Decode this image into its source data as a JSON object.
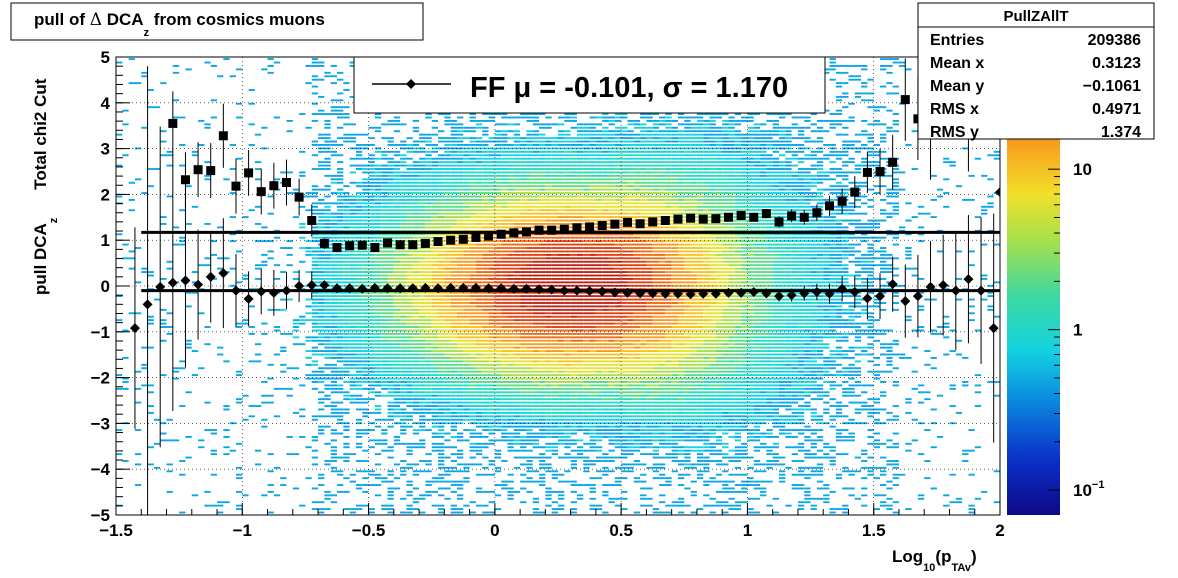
{
  "title_box": {
    "pre": "pull of ",
    "delta": "Δ",
    "mid": " DCA",
    "sub": "z",
    "post": " from cosmics muons"
  },
  "stats": {
    "name": "PullZAllT",
    "rows": [
      {
        "label": "Entries",
        "value": "209386"
      },
      {
        "label": "Mean x",
        "value": "0.3123"
      },
      {
        "label": "Mean y",
        "value": "−0.1061"
      },
      {
        "label": "RMS x",
        "value": "0.4971"
      },
      {
        "label": "RMS y",
        "value": "1.374"
      }
    ]
  },
  "legend": {
    "entry": "FF μ = -0.101, σ =   1.170"
  },
  "axes": {
    "ylabel_main": "pull DCA",
    "ylabel_sub": "z",
    "ylabel_extra": "Total chi2 Cut",
    "xlabel_main": "Log",
    "xlabel_sub1": "10",
    "xlabel_mid": "(p",
    "xlabel_sub2": "TAv",
    "xlabel_end": ")"
  },
  "colorbar": {
    "labels": [
      {
        "text": "10",
        "exp": "",
        "value": 10
      },
      {
        "text": "1",
        "exp": "",
        "value": 1
      },
      {
        "text": "10",
        "exp": "−1",
        "value": 0.1
      }
    ]
  },
  "chart_data": {
    "type": "heatmap",
    "xlim": [
      -1.5,
      2
    ],
    "ylim": [
      -5,
      5
    ],
    "xticks": [
      {
        "v": -1.5,
        "label": "−1.5"
      },
      {
        "v": -1,
        "label": "−1"
      },
      {
        "v": -0.5,
        "label": "−0.5"
      },
      {
        "v": 0,
        "label": "0"
      },
      {
        "v": 0.5,
        "label": "0.5"
      },
      {
        "v": 1,
        "label": "1"
      },
      {
        "v": 1.5,
        "label": "1.5"
      },
      {
        "v": 2,
        "label": "2"
      }
    ],
    "yticks": [
      {
        "v": -5,
        "label": "−5"
      },
      {
        "v": -4,
        "label": "−4"
      },
      {
        "v": -3,
        "label": "−3"
      },
      {
        "v": -2,
        "label": "−2"
      },
      {
        "v": -1,
        "label": "−1"
      },
      {
        "v": 0,
        "label": "0"
      },
      {
        "v": 1,
        "label": "1"
      },
      {
        "v": 2,
        "label": "2"
      },
      {
        "v": 3,
        "label": "3"
      },
      {
        "v": 4,
        "label": "4"
      },
      {
        "v": 5,
        "label": "5"
      }
    ],
    "grid": true,
    "z_scale": "log",
    "z_range": [
      0.07,
      50
    ],
    "lines": [
      {
        "y": 1.17,
        "color": "#000000"
      },
      {
        "y": -0.101,
        "color": "#000000"
      }
    ],
    "series": [
      {
        "marker": "square",
        "points": [
          {
            "x": -1.275,
            "y": 3.55,
            "err": 0.7
          },
          {
            "x": -1.225,
            "y": 2.32,
            "err": 0.6
          },
          {
            "x": -1.175,
            "y": 2.54,
            "err": 0.6
          },
          {
            "x": -1.125,
            "y": 2.52,
            "err": 0.6
          },
          {
            "x": -1.075,
            "y": 3.28,
            "err": 0.7
          },
          {
            "x": -1.025,
            "y": 2.18,
            "err": 0.6
          },
          {
            "x": -0.975,
            "y": 2.47,
            "err": 0.5
          },
          {
            "x": -0.925,
            "y": 2.06,
            "err": 0.5
          },
          {
            "x": -0.875,
            "y": 2.19,
            "err": 0.5
          },
          {
            "x": -0.825,
            "y": 2.26,
            "err": 0.5
          },
          {
            "x": -0.775,
            "y": 1.94,
            "err": 0.4
          },
          {
            "x": -0.725,
            "y": 1.43,
            "err": 0.35
          },
          {
            "x": -0.675,
            "y": 0.93,
            "err": 0.12
          },
          {
            "x": -0.625,
            "y": 0.84,
            "err": 0.1
          },
          {
            "x": -0.575,
            "y": 0.88,
            "err": 0.08
          },
          {
            "x": -0.525,
            "y": 0.89,
            "err": 0.08
          },
          {
            "x": -0.475,
            "y": 0.84,
            "err": 0.06
          },
          {
            "x": -0.425,
            "y": 0.94,
            "err": 0.05
          },
          {
            "x": -0.375,
            "y": 0.9,
            "err": 0.05
          },
          {
            "x": -0.325,
            "y": 0.9,
            "err": 0.05
          },
          {
            "x": -0.275,
            "y": 0.93,
            "err": 0.04
          },
          {
            "x": -0.225,
            "y": 0.97,
            "err": 0.04
          },
          {
            "x": -0.175,
            "y": 1.0,
            "err": 0.04
          },
          {
            "x": -0.125,
            "y": 1.02,
            "err": 0.04
          },
          {
            "x": -0.075,
            "y": 1.06,
            "err": 0.04
          },
          {
            "x": -0.025,
            "y": 1.09,
            "err": 0.04
          },
          {
            "x": 0.025,
            "y": 1.13,
            "err": 0.04
          },
          {
            "x": 0.075,
            "y": 1.16,
            "err": 0.04
          },
          {
            "x": 0.125,
            "y": 1.18,
            "err": 0.04
          },
          {
            "x": 0.175,
            "y": 1.22,
            "err": 0.04
          },
          {
            "x": 0.225,
            "y": 1.22,
            "err": 0.04
          },
          {
            "x": 0.275,
            "y": 1.24,
            "err": 0.04
          },
          {
            "x": 0.325,
            "y": 1.27,
            "err": 0.04
          },
          {
            "x": 0.375,
            "y": 1.29,
            "err": 0.04
          },
          {
            "x": 0.425,
            "y": 1.32,
            "err": 0.04
          },
          {
            "x": 0.475,
            "y": 1.35,
            "err": 0.04
          },
          {
            "x": 0.525,
            "y": 1.39,
            "err": 0.04
          },
          {
            "x": 0.575,
            "y": 1.36,
            "err": 0.05
          },
          {
            "x": 0.625,
            "y": 1.4,
            "err": 0.05
          },
          {
            "x": 0.675,
            "y": 1.43,
            "err": 0.05
          },
          {
            "x": 0.725,
            "y": 1.46,
            "err": 0.05
          },
          {
            "x": 0.775,
            "y": 1.48,
            "err": 0.06
          },
          {
            "x": 0.825,
            "y": 1.46,
            "err": 0.06
          },
          {
            "x": 0.875,
            "y": 1.47,
            "err": 0.07
          },
          {
            "x": 0.925,
            "y": 1.5,
            "err": 0.07
          },
          {
            "x": 0.975,
            "y": 1.54,
            "err": 0.08
          },
          {
            "x": 1.025,
            "y": 1.5,
            "err": 0.09
          },
          {
            "x": 1.075,
            "y": 1.58,
            "err": 0.1
          },
          {
            "x": 1.125,
            "y": 1.4,
            "err": 0.12
          },
          {
            "x": 1.175,
            "y": 1.53,
            "err": 0.14
          },
          {
            "x": 1.225,
            "y": 1.5,
            "err": 0.16
          },
          {
            "x": 1.275,
            "y": 1.6,
            "err": 0.18
          },
          {
            "x": 1.325,
            "y": 1.75,
            "err": 0.22
          },
          {
            "x": 1.375,
            "y": 1.85,
            "err": 0.28
          },
          {
            "x": 1.425,
            "y": 2.05,
            "err": 0.35
          },
          {
            "x": 1.475,
            "y": 2.48,
            "err": 0.45
          },
          {
            "x": 1.525,
            "y": 2.5,
            "err": 0.5
          },
          {
            "x": 1.575,
            "y": 2.7,
            "err": 0.6
          },
          {
            "x": 1.625,
            "y": 4.07,
            "err": 0.9
          },
          {
            "x": 1.675,
            "y": 3.65,
            "err": 0.9
          },
          {
            "x": 1.725,
            "y": 3.32,
            "err": 1.0
          },
          {
            "x": 1.875,
            "y": 3.9,
            "err": 1.4
          }
        ]
      },
      {
        "marker": "diamond",
        "points": [
          {
            "x": -1.425,
            "y": -0.92,
            "err": 2.2
          },
          {
            "x": -1.375,
            "y": -0.4,
            "err": 5.2
          },
          {
            "x": -1.325,
            "y": -0.02,
            "err": 3.5
          },
          {
            "x": -1.275,
            "y": 0.07,
            "err": 2.8
          },
          {
            "x": -1.225,
            "y": 0.12,
            "err": 1.9
          },
          {
            "x": -1.175,
            "y": 0.03,
            "err": 1.2
          },
          {
            "x": -1.125,
            "y": 0.2,
            "err": 1.0
          },
          {
            "x": -1.075,
            "y": 0.28,
            "err": 1.2
          },
          {
            "x": -1.025,
            "y": -0.1,
            "err": 0.8
          },
          {
            "x": -0.975,
            "y": -0.28,
            "err": 0.6
          },
          {
            "x": -0.925,
            "y": -0.12,
            "err": 0.5
          },
          {
            "x": -0.875,
            "y": -0.15,
            "err": 0.5
          },
          {
            "x": -0.825,
            "y": -0.1,
            "err": 0.4
          },
          {
            "x": -0.775,
            "y": 0.0,
            "err": 0.35
          },
          {
            "x": -0.725,
            "y": 0.02,
            "err": 0.3
          },
          {
            "x": -0.675,
            "y": 0.02,
            "err": 0.1
          },
          {
            "x": -0.625,
            "y": -0.05,
            "err": 0.08
          },
          {
            "x": -0.575,
            "y": -0.05,
            "err": 0.07
          },
          {
            "x": -0.525,
            "y": -0.06,
            "err": 0.07
          },
          {
            "x": -0.475,
            "y": -0.04,
            "err": 0.06
          },
          {
            "x": -0.425,
            "y": -0.05,
            "err": 0.05
          },
          {
            "x": -0.375,
            "y": -0.05,
            "err": 0.05
          },
          {
            "x": -0.325,
            "y": -0.05,
            "err": 0.05
          },
          {
            "x": -0.275,
            "y": -0.04,
            "err": 0.04
          },
          {
            "x": -0.225,
            "y": -0.05,
            "err": 0.04
          },
          {
            "x": -0.175,
            "y": -0.04,
            "err": 0.04
          },
          {
            "x": -0.125,
            "y": -0.04,
            "err": 0.04
          },
          {
            "x": -0.075,
            "y": -0.04,
            "err": 0.04
          },
          {
            "x": -0.025,
            "y": -0.05,
            "err": 0.04
          },
          {
            "x": 0.025,
            "y": -0.05,
            "err": 0.04
          },
          {
            "x": 0.075,
            "y": -0.06,
            "err": 0.04
          },
          {
            "x": 0.125,
            "y": -0.06,
            "err": 0.04
          },
          {
            "x": 0.175,
            "y": -0.07,
            "err": 0.04
          },
          {
            "x": 0.225,
            "y": -0.08,
            "err": 0.04
          },
          {
            "x": 0.275,
            "y": -0.1,
            "err": 0.04
          },
          {
            "x": 0.325,
            "y": -0.1,
            "err": 0.04
          },
          {
            "x": 0.375,
            "y": -0.11,
            "err": 0.04
          },
          {
            "x": 0.425,
            "y": -0.12,
            "err": 0.04
          },
          {
            "x": 0.475,
            "y": -0.14,
            "err": 0.04
          },
          {
            "x": 0.525,
            "y": -0.15,
            "err": 0.04
          },
          {
            "x": 0.575,
            "y": -0.16,
            "err": 0.05
          },
          {
            "x": 0.625,
            "y": -0.16,
            "err": 0.05
          },
          {
            "x": 0.675,
            "y": -0.17,
            "err": 0.05
          },
          {
            "x": 0.725,
            "y": -0.17,
            "err": 0.05
          },
          {
            "x": 0.775,
            "y": -0.18,
            "err": 0.06
          },
          {
            "x": 0.825,
            "y": -0.17,
            "err": 0.06
          },
          {
            "x": 0.875,
            "y": -0.17,
            "err": 0.07
          },
          {
            "x": 0.925,
            "y": -0.15,
            "err": 0.07
          },
          {
            "x": 0.975,
            "y": -0.15,
            "err": 0.08
          },
          {
            "x": 1.025,
            "y": -0.13,
            "err": 0.09
          },
          {
            "x": 1.075,
            "y": -0.16,
            "err": 0.1
          },
          {
            "x": 1.125,
            "y": -0.22,
            "err": 0.12
          },
          {
            "x": 1.175,
            "y": -0.2,
            "err": 0.14
          },
          {
            "x": 1.225,
            "y": -0.16,
            "err": 0.16
          },
          {
            "x": 1.275,
            "y": -0.13,
            "err": 0.18
          },
          {
            "x": 1.325,
            "y": -0.17,
            "err": 0.22
          },
          {
            "x": 1.375,
            "y": -0.06,
            "err": 0.28
          },
          {
            "x": 1.425,
            "y": -0.13,
            "err": 0.35
          },
          {
            "x": 1.475,
            "y": -0.27,
            "err": 0.45
          },
          {
            "x": 1.525,
            "y": -0.22,
            "err": 0.5
          },
          {
            "x": 1.575,
            "y": 0.04,
            "err": 0.6
          },
          {
            "x": 1.625,
            "y": -0.33,
            "err": 0.8
          },
          {
            "x": 1.675,
            "y": -0.22,
            "err": 0.9
          },
          {
            "x": 1.725,
            "y": -0.02,
            "err": 1.0
          },
          {
            "x": 1.775,
            "y": 0.02,
            "err": 1.1
          },
          {
            "x": 1.825,
            "y": -0.1,
            "err": 1.3
          },
          {
            "x": 1.875,
            "y": 0.15,
            "err": 1.4
          },
          {
            "x": 1.925,
            "y": -0.1,
            "err": 1.6
          },
          {
            "x": 1.975,
            "y": -0.92,
            "err": 2.5
          },
          {
            "x": 2.0,
            "y": 2.05,
            "err": 2.6
          }
        ]
      }
    ]
  }
}
